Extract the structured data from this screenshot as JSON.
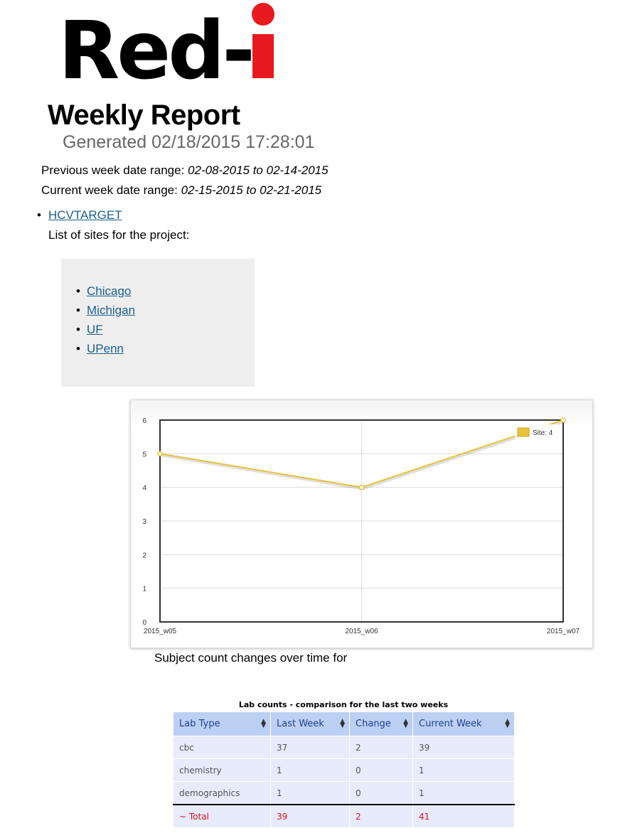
{
  "logo": {
    "text": "Red-i",
    "alt": "Red-i"
  },
  "header": {
    "title": "Weekly Report",
    "generated": "Generated 02/18/2015 17:28:01",
    "previous_label": "Previous week date range:",
    "previous_range": "02-08-2015 to 02-14-2015",
    "current_label": "Current week date range:",
    "current_range": "02-15-2015 to 02-21-2015"
  },
  "project": {
    "name": "HCVTARGET",
    "sites_caption": "List of sites for the project:",
    "sites": [
      "Chicago",
      "Michigan",
      "UF",
      "UPenn"
    ]
  },
  "chart_data": {
    "type": "line",
    "categories": [
      "2015_w05",
      "2015_w06",
      "2015_w07"
    ],
    "series": [
      {
        "name": "Site: 4",
        "values": [
          5,
          4,
          6
        ],
        "color": "#e8c23a"
      }
    ],
    "ylim": [
      0,
      6
    ],
    "yticks": [
      0,
      1,
      2,
      3,
      4,
      5,
      6
    ],
    "grid": true,
    "legend": "top-right",
    "caption": "Subject count changes over time for"
  },
  "lab_table": {
    "caption": "Lab counts - comparison for the last two weeks",
    "columns": [
      "Lab Type",
      "Last Week",
      "Change",
      "Current Week"
    ],
    "rows": [
      [
        "cbc",
        "37",
        "2",
        "39"
      ],
      [
        "chemistry",
        "1",
        "0",
        "1"
      ],
      [
        "demographics",
        "1",
        "0",
        "1"
      ]
    ],
    "total": [
      "~ Total",
      "39",
      "2",
      "41"
    ]
  },
  "colors": {
    "accent_red": "#e8191f",
    "link": "#1a5f8e",
    "header_bg": "#bcd0f4",
    "row_bg": "#e7ebfb"
  }
}
